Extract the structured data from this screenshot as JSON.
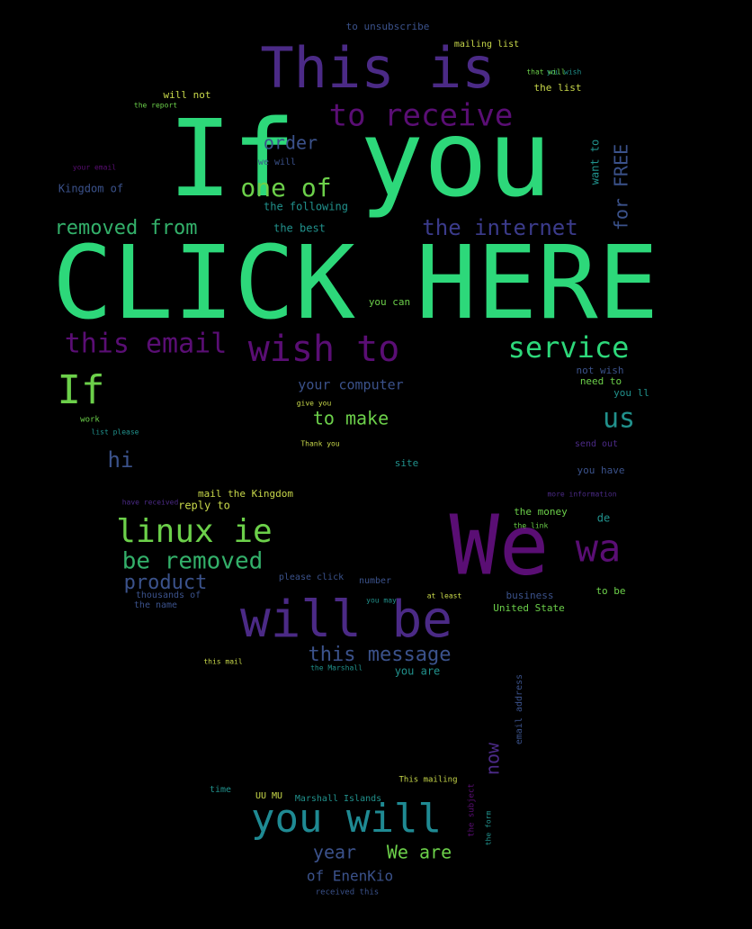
{
  "colors": {
    "background": "#000000",
    "palette": [
      "#3ddc84",
      "#440154",
      "#3b528b",
      "#21918c",
      "#5ec962",
      "#fde725"
    ]
  },
  "words": [
    {
      "text": "If you",
      "color": "#2dd87a"
    },
    {
      "text": "CLICK HERE",
      "color": "#2dd87a"
    },
    {
      "text": "This is",
      "color": "#4b2a86"
    },
    {
      "text": "We",
      "color": "#5a0e74"
    },
    {
      "text": "will be",
      "color": "#4b2a86"
    },
    {
      "text": "you will",
      "color": "#1f8a93"
    },
    {
      "text": "to receive",
      "color": "#5a0e74"
    },
    {
      "text": "this email",
      "color": "#5a0e74"
    },
    {
      "text": "wish to",
      "color": "#5a0e74"
    },
    {
      "text": "service",
      "color": "#2dd87a"
    },
    {
      "text": "linux ie",
      "color": "#6cd04a"
    },
    {
      "text": "be removed",
      "color": "#33b06a"
    },
    {
      "text": "If",
      "color": "#6cd04a"
    },
    {
      "text": "wa",
      "color": "#5a0e74"
    },
    {
      "text": "one of",
      "color": "#6cd04a"
    },
    {
      "text": "the internet",
      "color": "#3b3b8b"
    },
    {
      "text": "removed from",
      "color": "#33b06a"
    },
    {
      "text": "us",
      "color": "#21918c"
    },
    {
      "text": "product",
      "color": "#3b528b"
    },
    {
      "text": "this message",
      "color": "#3b528b"
    },
    {
      "text": "hi",
      "color": "#3b528b"
    },
    {
      "text": "to make",
      "color": "#6cd04a"
    },
    {
      "text": "order",
      "color": "#3b528b"
    },
    {
      "text": "for FREE",
      "color": "#3b528b"
    },
    {
      "text": "want to",
      "color": "#21918c"
    },
    {
      "text": "your computer",
      "color": "#3b528b"
    },
    {
      "text": "year",
      "color": "#3b528b"
    },
    {
      "text": "We are",
      "color": "#6cd04a"
    },
    {
      "text": "of EnenKio",
      "color": "#3b528b"
    },
    {
      "text": "now",
      "color": "#4b2a86"
    },
    {
      "text": "to unsubscribe",
      "color": "#3b528b"
    },
    {
      "text": "Kingdom of",
      "color": "#3b528b"
    },
    {
      "text": "the following",
      "color": "#21918c"
    },
    {
      "text": "the best",
      "color": "#21918c"
    },
    {
      "text": "will not",
      "color": "#c8d84a"
    },
    {
      "text": "the list",
      "color": "#c8d84a"
    },
    {
      "text": "mailing list",
      "color": "#c8d84a"
    },
    {
      "text": "we will",
      "color": "#3b528b"
    },
    {
      "text": "not wish",
      "color": "#3b528b"
    },
    {
      "text": "need to",
      "color": "#6cd04a"
    },
    {
      "text": "you ll",
      "color": "#21918c"
    },
    {
      "text": "you can",
      "color": "#6cd04a"
    },
    {
      "text": "site",
      "color": "#21918c"
    },
    {
      "text": "you have",
      "color": "#3b528b"
    },
    {
      "text": "the money",
      "color": "#6cd04a"
    },
    {
      "text": "de",
      "color": "#21918c"
    },
    {
      "text": "to be",
      "color": "#6cd04a"
    },
    {
      "text": "United State",
      "color": "#6cd04a"
    },
    {
      "text": "business",
      "color": "#3b528b"
    },
    {
      "text": "reply to",
      "color": "#c8d84a"
    },
    {
      "text": "mail the Kingdom",
      "color": "#c8d84a"
    },
    {
      "text": "number",
      "color": "#3b528b"
    },
    {
      "text": "please click",
      "color": "#3b528b"
    },
    {
      "text": "thousands of",
      "color": "#3b528b"
    },
    {
      "text": "the name",
      "color": "#3b528b"
    },
    {
      "text": "you are",
      "color": "#21918c"
    },
    {
      "text": "time",
      "color": "#21918c"
    },
    {
      "text": "UU MU",
      "color": "#c8d84a"
    },
    {
      "text": "Marshall Islands",
      "color": "#21918c"
    },
    {
      "text": "This mailing",
      "color": "#c8d84a"
    },
    {
      "text": "received this",
      "color": "#3b528b"
    },
    {
      "text": "Thank you",
      "color": "#c8d84a"
    },
    {
      "text": "give you",
      "color": "#c8d84a"
    },
    {
      "text": "work",
      "color": "#6cd04a"
    },
    {
      "text": "list please",
      "color": "#21918c"
    },
    {
      "text": "your email",
      "color": "#5a0e74"
    },
    {
      "text": "the report",
      "color": "#6cd04a"
    },
    {
      "text": "you wish",
      "color": "#21918c"
    },
    {
      "text": "that will",
      "color": "#6cd04a"
    },
    {
      "text": "send out",
      "color": "#4b2a86"
    },
    {
      "text": "more information",
      "color": "#4b2a86"
    },
    {
      "text": "have received",
      "color": "#4b2a86"
    },
    {
      "text": "the link",
      "color": "#6cd04a"
    },
    {
      "text": "this mail",
      "color": "#c8d84a"
    },
    {
      "text": "the Marshall",
      "color": "#21918c"
    },
    {
      "text": "you may",
      "color": "#21918c"
    },
    {
      "text": "at least",
      "color": "#c8d84a"
    },
    {
      "text": "email address",
      "color": "#3b528b"
    },
    {
      "text": "the subject",
      "color": "#5a0e74"
    },
    {
      "text": "the form",
      "color": "#21918c"
    }
  ]
}
